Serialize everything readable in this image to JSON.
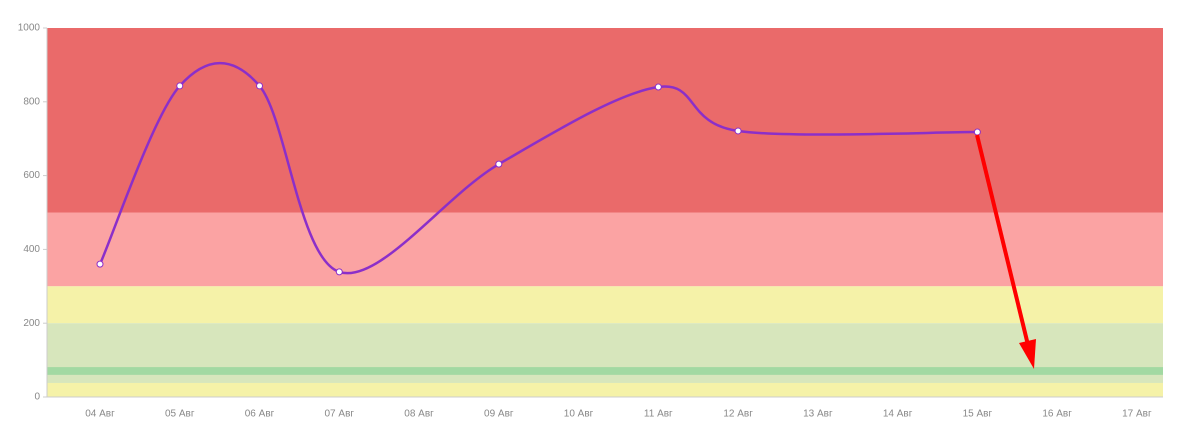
{
  "chart_data": {
    "type": "line",
    "categories": [
      "04 Авг",
      "05 Авг",
      "06 Авг",
      "07 Авг",
      "08 Авг",
      "09 Авг",
      "10 Авг",
      "11 Авг",
      "12 Авг",
      "13 Авг",
      "14 Авг",
      "15 Авг",
      "16 Авг",
      "17 Авг"
    ],
    "series": [
      {
        "color": "#8b2fc9",
        "x": [
          "04 Авг",
          "05 Авг",
          "06 Авг",
          "07 Авг",
          "09 Авг",
          "11 Авг",
          "12 Авг",
          "15 Авг"
        ],
        "values": [
          360,
          843,
          843,
          339,
          631,
          840,
          721,
          718
        ]
      }
    ],
    "bands": [
      {
        "from": 500,
        "to": 1000,
        "color": "#ea6a6a"
      },
      {
        "from": 300,
        "to": 500,
        "color": "#fba3a3"
      },
      {
        "from": 200,
        "to": 300,
        "color": "#f5f2a8"
      },
      {
        "from": 38,
        "to": 200,
        "color": "#d7e6bc"
      },
      {
        "from": 60,
        "to": 81,
        "color": "#a2d9a2"
      },
      {
        "from": 0,
        "to": 38,
        "color": "#f5f2a8"
      }
    ],
    "ylim": [
      0,
      1000
    ],
    "yticks": [
      0,
      200,
      400,
      600,
      800,
      1000
    ]
  }
}
